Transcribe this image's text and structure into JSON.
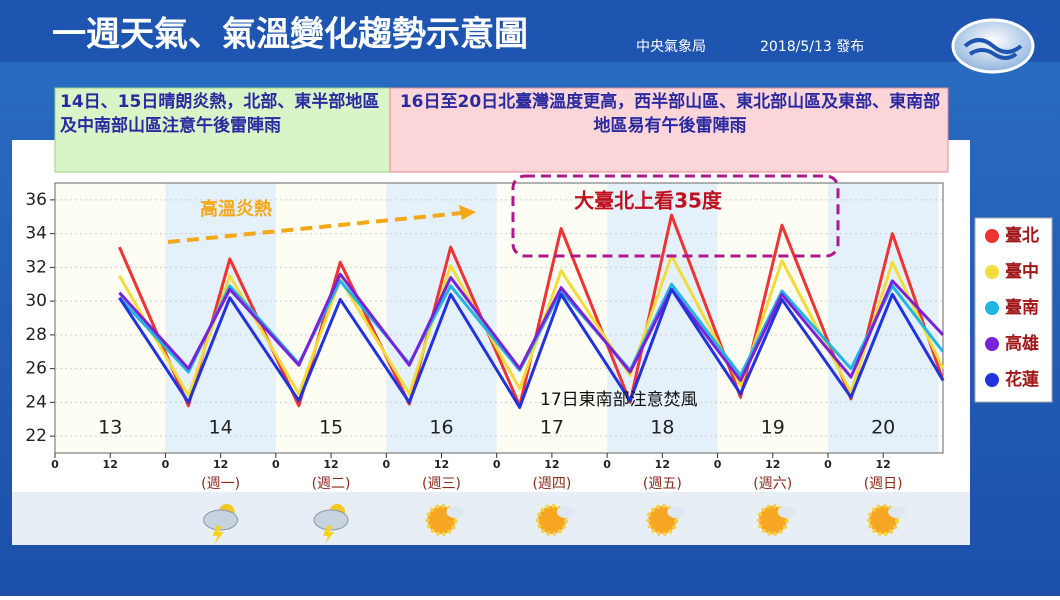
{
  "header": {
    "title": "一週天氣、氣溫變化趨勢示意圖",
    "agency": "中央氣象局",
    "date": "2018/5/13 發布"
  },
  "notes": [
    "14日、15日晴朗炎熱，北部、東半部地區及中南部山區注意午後雷陣雨",
    "16日至20日北臺灣溫度更高，西半部山區、東北部山區及東部、東南部地區易有午後雷陣雨"
  ],
  "chart_data": {
    "type": "line",
    "annotations": [
      "高溫炎熱",
      "大臺北上看35度",
      "17日東南部注意焚風"
    ],
    "x": [
      14,
      29,
      38,
      53,
      62,
      77,
      86,
      101,
      110,
      125,
      134,
      149,
      158,
      173,
      182,
      193
    ],
    "xlim": [
      0,
      193
    ],
    "xticks": [
      0,
      12,
      {
        "value": 24,
        "label": "0"
      },
      {
        "value": 36,
        "label": "12"
      },
      {
        "value": 48,
        "label": "0"
      },
      {
        "value": 60,
        "label": "12"
      },
      {
        "value": 72,
        "label": "0"
      },
      {
        "value": 84,
        "label": "12"
      },
      {
        "value": 96,
        "label": "0"
      },
      {
        "value": 108,
        "label": "12"
      },
      {
        "value": 120,
        "label": "0"
      },
      {
        "value": 132,
        "label": "12"
      },
      {
        "value": 144,
        "label": "0"
      },
      {
        "value": 156,
        "label": "12"
      },
      {
        "value": 168,
        "label": "0"
      },
      {
        "value": 180,
        "label": "12"
      }
    ],
    "days": [
      "13",
      "14",
      "15",
      "16",
      "17",
      "18",
      "19",
      "20"
    ],
    "weekdays": [
      null,
      "(週一)",
      "(週二)",
      "(週三)",
      "(週四)",
      "(週五)",
      "(週六)",
      "(週日)"
    ],
    "ylim": [
      21,
      37
    ],
    "yticks": [
      22,
      24,
      26,
      28,
      30,
      32,
      34,
      36
    ],
    "series": [
      {
        "name": "臺北",
        "color": "#ee3333",
        "values": [
          33.2,
          23.8,
          32.5,
          23.8,
          32.3,
          23.9,
          33.2,
          23.8,
          34.3,
          24.0,
          35.1,
          24.3,
          34.5,
          24.2,
          34.0,
          25.3
        ]
      },
      {
        "name": "臺中",
        "color": "#f2dc3c",
        "values": [
          31.5,
          24.4,
          31.5,
          24.5,
          31.3,
          24.5,
          32.1,
          24.8,
          31.8,
          25.6,
          32.7,
          25.0,
          32.4,
          24.6,
          32.3,
          26.0
        ]
      },
      {
        "name": "臺南",
        "color": "#22b5e0",
        "values": [
          30.2,
          25.8,
          30.9,
          26.3,
          31.2,
          26.3,
          30.9,
          25.9,
          30.6,
          25.9,
          31.0,
          25.6,
          30.6,
          26.0,
          30.9,
          27.0
        ]
      },
      {
        "name": "高雄",
        "color": "#7a22d8",
        "values": [
          30.5,
          26.0,
          30.7,
          26.2,
          31.6,
          26.2,
          31.4,
          26.0,
          30.8,
          25.8,
          30.7,
          25.3,
          30.4,
          25.5,
          31.2,
          28.0
        ]
      },
      {
        "name": "花蓮",
        "color": "#2233dd",
        "values": [
          30.2,
          24.0,
          30.2,
          24.1,
          30.1,
          24.0,
          30.4,
          23.7,
          30.4,
          24.1,
          30.7,
          24.5,
          30.1,
          24.3,
          30.4,
          25.3
        ]
      }
    ]
  }
}
